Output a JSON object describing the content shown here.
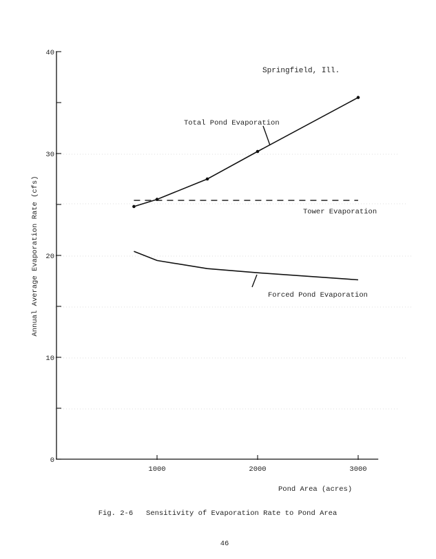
{
  "chart_data": {
    "type": "line",
    "title": "",
    "xlabel": "Pond Area (acres)",
    "ylabel": "Annual Average Evaporation Rate (cfs)",
    "xlim": [
      0,
      3200
    ],
    "ylim": [
      0,
      40
    ],
    "x_ticks": [
      1000,
      2000,
      3000
    ],
    "y_ticks": [
      0,
      10,
      20,
      30,
      40
    ],
    "y_minor_ticks": [
      5,
      15,
      25,
      35
    ],
    "grid": false,
    "legend": "none",
    "annotation": "Springfield, Ill.",
    "series": [
      {
        "name": "Total Pond Evaporation",
        "style": "solid",
        "markers": true,
        "x": [
          770,
          1000,
          1500,
          2000,
          3000
        ],
        "y": [
          24.8,
          25.5,
          27.5,
          30.2,
          35.5
        ]
      },
      {
        "name": "Tower Evaporation",
        "style": "dashed",
        "markers": false,
        "x": [
          770,
          3000
        ],
        "y": [
          25.4,
          25.4
        ]
      },
      {
        "name": "Forced Pond Evaporation",
        "style": "solid",
        "markers": false,
        "x": [
          770,
          1000,
          1500,
          2000,
          3000
        ],
        "y": [
          20.4,
          19.5,
          18.7,
          18.3,
          17.6
        ]
      }
    ]
  },
  "caption": "Fig. 2-6   Sensitivity of Evaporation Rate to Pond Area",
  "page_number": "46"
}
